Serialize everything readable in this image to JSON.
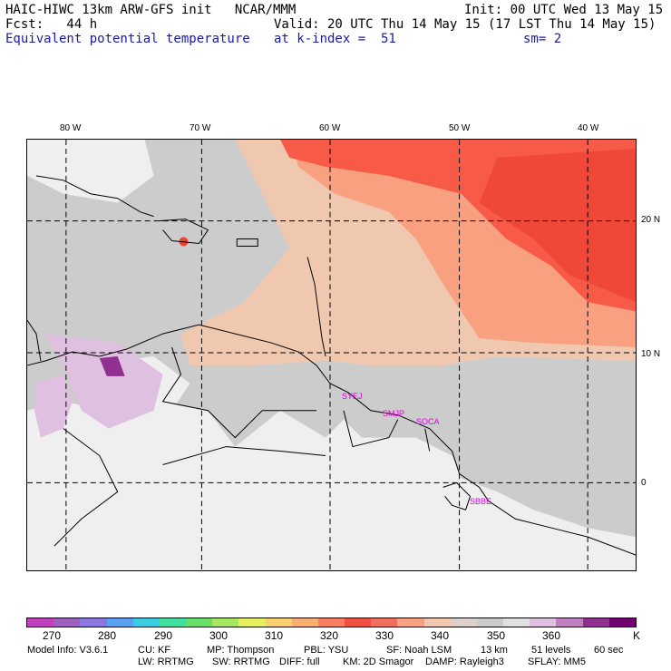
{
  "header": {
    "title": "HAIC-HIWC 13km ARW-GFS init   NCAR/MMM",
    "init": "Init: 00 UTC Wed 13 May 15",
    "fcst": "Fcst:   44 h",
    "valid": "Valid: 20 UTC Thu 14 May 15 (17 LST Thu 14 May 15)",
    "field": "Equivalent potential temperature",
    "level": "at k-index =  51",
    "smooth": "sm= 2"
  },
  "axes": {
    "lon_labels": [
      "80 W",
      "70 W",
      "60 W",
      "50 W",
      "40 W"
    ],
    "lat_labels": [
      "20 N",
      "10 N",
      "0"
    ]
  },
  "stations": [
    "SYEJ",
    "SMJP",
    "SOCA",
    "SBBE"
  ],
  "colorbar": {
    "labels": [
      "270",
      "280",
      "290",
      "300",
      "310",
      "320",
      "330",
      "340",
      "350",
      "360",
      "K"
    ],
    "colors": [
      "#c040c0",
      "#a060c0",
      "#8a78e0",
      "#5aa0f0",
      "#3acce0",
      "#40e0a0",
      "#68e068",
      "#a8e860",
      "#e8f060",
      "#f8d070",
      "#f8b070",
      "#f88060",
      "#f05040",
      "#f07060",
      "#f8a080",
      "#f0c8b0",
      "#e0d0cc",
      "#cccccc",
      "#e0e0e0",
      "#e0c0e0",
      "#c080c0",
      "#903090",
      "#700070"
    ]
  },
  "footer": {
    "line1": [
      "Model Info: V3.6.1",
      "CU: KF",
      "MP: Thompson",
      "PBL: YSU",
      "SF: Noah LSM",
      "13 km",
      "51 levels",
      "60 sec"
    ],
    "line2": [
      "LW: RRTMG",
      "SW: RRTMG",
      "DIFF: full",
      "KM: 2D Smagor",
      "DAMP: Rayleigh3",
      "SFLAY: MM5"
    ]
  },
  "colors": {
    "bg_gray": "#cccccc",
    "land_light": "#efefef",
    "warm_high": "#f85a48",
    "warm_mid": "#f8a080",
    "warm_low": "#f0c8b0",
    "cool_purple": "#e0c0e0",
    "deep_purple": "#903090"
  }
}
